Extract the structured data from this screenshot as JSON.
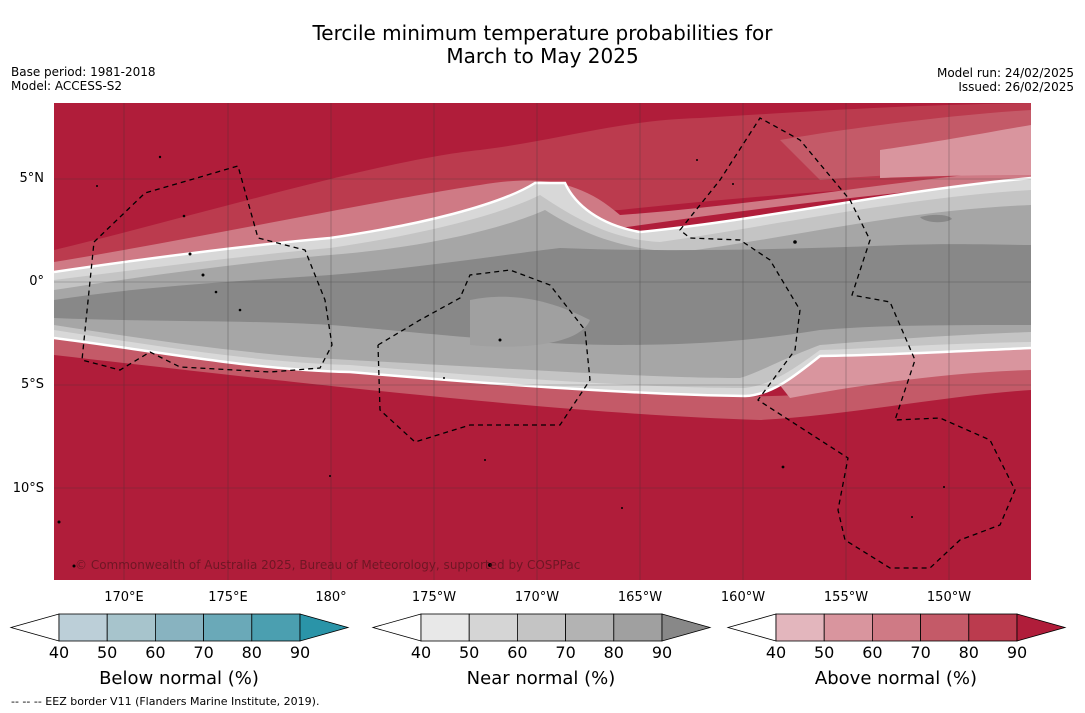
{
  "title_line1": "Tercile minimum temperature probabilities for",
  "title_line2": "March to May 2025",
  "meta_left": {
    "base_period": "Base period: 1981-2018",
    "model": "Model: ACCESS-S2"
  },
  "meta_right": {
    "model_run": "Model run: 24/02/2025",
    "issued": "Issued: 26/02/2025"
  },
  "lat_labels": [
    "5°N",
    "0°",
    "5°S",
    "10°S"
  ],
  "lon_labels": [
    "170°E",
    "175°E",
    "180°",
    "175°W",
    "170°W",
    "165°W",
    "160°W",
    "155°W",
    "150°W"
  ],
  "copyright": "© Commonwealth of Australia 2025, Bureau of Meteorology, supported by COSPPac",
  "colorbars": [
    {
      "title": "Below normal (%)",
      "ticks": [
        "40",
        "50",
        "60",
        "70",
        "80",
        "90"
      ],
      "colors": [
        "#bccfd8",
        "#a7c4cc",
        "#88b3c0",
        "#6aa9b8",
        "#4b9fb0",
        "#2a94a8"
      ]
    },
    {
      "title": "Near normal (%)",
      "ticks": [
        "40",
        "50",
        "60",
        "70",
        "80",
        "90"
      ],
      "colors": [
        "#e8e8e8",
        "#d5d5d5",
        "#c4c4c4",
        "#b3b3b3",
        "#a0a0a0",
        "#888888"
      ]
    },
    {
      "title": "Above normal (%)",
      "ticks": [
        "40",
        "50",
        "60",
        "70",
        "80",
        "90"
      ],
      "colors": [
        "#e3b6bd",
        "#d9959e",
        "#cf7a85",
        "#c45a68",
        "#bb3b4e",
        "#b01d3a"
      ]
    }
  ],
  "footer": "--  --  -- EEZ border V11 (Flanders Marine Institute, 2019)."
}
